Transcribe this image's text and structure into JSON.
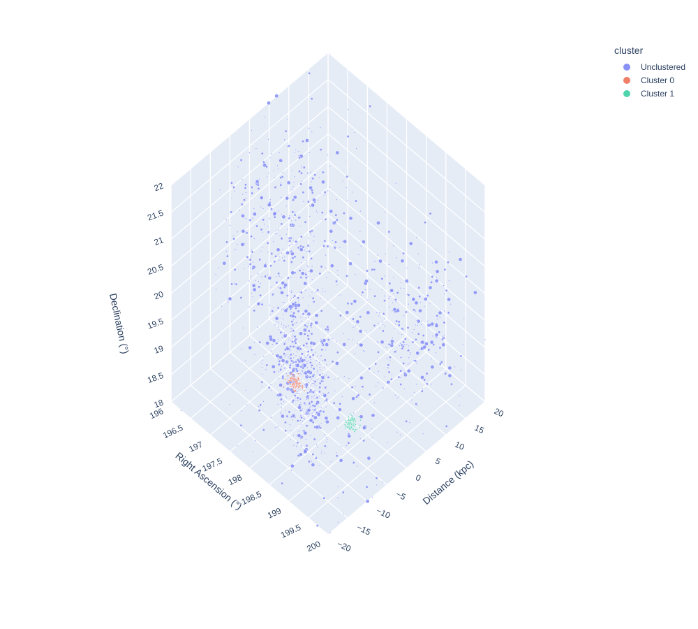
{
  "chart_data": {
    "type": "scatter",
    "scene": "3d",
    "axes": {
      "x": {
        "label": "Right Ascension (°)",
        "range": [
          196,
          200
        ],
        "ticks": [
          "196",
          "196.5",
          "197",
          "197.5",
          "198",
          "198.5",
          "199",
          "199.5",
          "200"
        ]
      },
      "y": {
        "label": "Distance (kpc)",
        "range": [
          -20,
          20
        ],
        "ticks": [
          "−20",
          "−15",
          "−10",
          "−5",
          "0",
          "5",
          "10",
          "15",
          "20"
        ]
      },
      "z": {
        "label": "Declination (°)",
        "range": [
          18,
          22
        ],
        "ticks": [
          "18",
          "18.5",
          "19",
          "19.5",
          "20",
          "20.5",
          "21",
          "21.5",
          "22"
        ]
      }
    },
    "grid": true,
    "legend": {
      "title": "cluster",
      "position": "top-right",
      "entries": [
        {
          "name": "Unclustered",
          "color": "#8892f6"
        },
        {
          "name": "Cluster 0",
          "color": "#ef7f67"
        },
        {
          "name": "Cluster 1",
          "color": "#4fd3ad"
        }
      ]
    },
    "series": [
      {
        "name": "Unclustered",
        "color": "#8892f6",
        "groups": [
          {
            "center": [
              198.3,
              -10.0,
              19.3
            ],
            "spread": [
              0.35,
              1.2,
              0.7
            ],
            "count": 520
          },
          {
            "center": [
              196.8,
              2.0,
              20.3
            ],
            "spread": [
              0.7,
              6.0,
              0.8
            ],
            "count": 420
          },
          {
            "center": [
              199.2,
              8.0,
              19.6
            ],
            "spread": [
              0.6,
              5.5,
              0.6
            ],
            "count": 300
          },
          {
            "center": [
              198.6,
              -9.0,
              19.0
            ],
            "spread": [
              1.0,
              6.0,
              0.9
            ],
            "count": 180
          }
        ]
      },
      {
        "name": "Cluster 0",
        "color": "#ef7f67",
        "groups": [
          {
            "center": [
              198.05,
              -9.0,
              18.95
            ],
            "spread": [
              0.07,
              0.5,
              0.05
            ],
            "count": 90
          }
        ]
      },
      {
        "name": "Cluster 1",
        "color": "#4fd3ad",
        "groups": [
          {
            "center": [
              199.35,
              -7.5,
              18.9
            ],
            "spread": [
              0.06,
              0.5,
              0.06
            ],
            "count": 70
          }
        ]
      }
    ]
  }
}
